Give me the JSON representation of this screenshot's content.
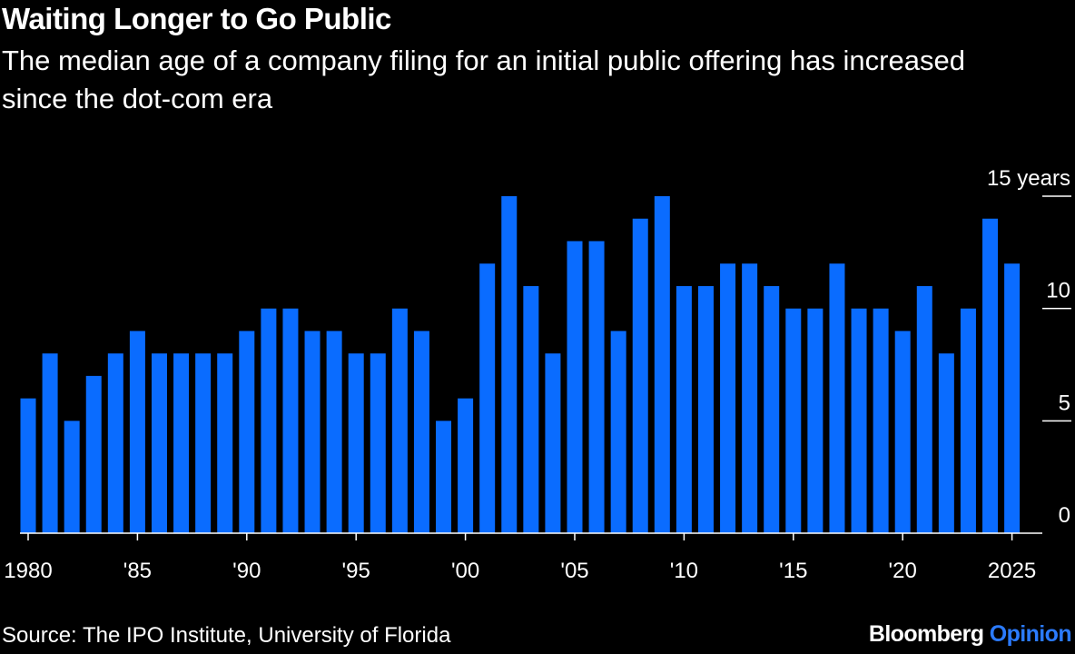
{
  "title": "Waiting Longer to Go Public",
  "subtitle": "The median age of a company filing for an initial public offering has increased since the dot-com era",
  "source": "Source: The IPO Institute, University of Florida",
  "brand": {
    "name": "Bloomberg",
    "suffix": "Opinion"
  },
  "colors": {
    "bar": "#0a6cff",
    "background": "#000000",
    "text": "#ffffff",
    "brand_accent": "#2b7bff"
  },
  "chart_data": {
    "type": "bar",
    "title": "Waiting Longer to Go Public",
    "subtitle": "The median age of a company filing for an initial public offering has increased since the dot-com era",
    "x": [
      1980,
      1981,
      1982,
      1983,
      1984,
      1985,
      1986,
      1987,
      1988,
      1989,
      1990,
      1991,
      1992,
      1993,
      1994,
      1995,
      1996,
      1997,
      1998,
      1999,
      2000,
      2001,
      2002,
      2003,
      2004,
      2005,
      2006,
      2007,
      2008,
      2009,
      2010,
      2011,
      2012,
      2013,
      2014,
      2015,
      2016,
      2017,
      2018,
      2019,
      2020,
      2021,
      2022,
      2023,
      2024,
      2025
    ],
    "values": [
      6,
      8,
      5,
      7,
      8,
      9,
      8,
      8,
      8,
      8,
      9,
      10,
      10,
      9,
      9,
      8,
      8,
      10,
      9,
      5,
      6,
      12,
      15,
      11,
      8,
      13,
      13,
      9,
      14,
      15,
      11,
      11,
      12,
      12,
      11,
      10,
      10,
      12,
      10,
      10,
      9,
      11,
      8,
      10,
      14,
      12
    ],
    "x_tick_labels": [
      {
        "x": 1980,
        "label": "1980"
      },
      {
        "x": 1985,
        "label": "'85"
      },
      {
        "x": 1990,
        "label": "'90"
      },
      {
        "x": 1995,
        "label": "'95"
      },
      {
        "x": 2000,
        "label": "'00"
      },
      {
        "x": 2005,
        "label": "'05"
      },
      {
        "x": 2010,
        "label": "'10"
      },
      {
        "x": 2015,
        "label": "'15"
      },
      {
        "x": 2020,
        "label": "'20"
      },
      {
        "x": 2025,
        "label": "2025"
      }
    ],
    "y_ticks": [
      {
        "value": 0,
        "label": "0"
      },
      {
        "value": 5,
        "label": "5"
      },
      {
        "value": 10,
        "label": "10"
      },
      {
        "value": 15,
        "label": "15 years"
      }
    ],
    "ylim": [
      0,
      15
    ],
    "xlabel": "",
    "ylabel": "",
    "grid": false,
    "y_axis_side": "right"
  }
}
